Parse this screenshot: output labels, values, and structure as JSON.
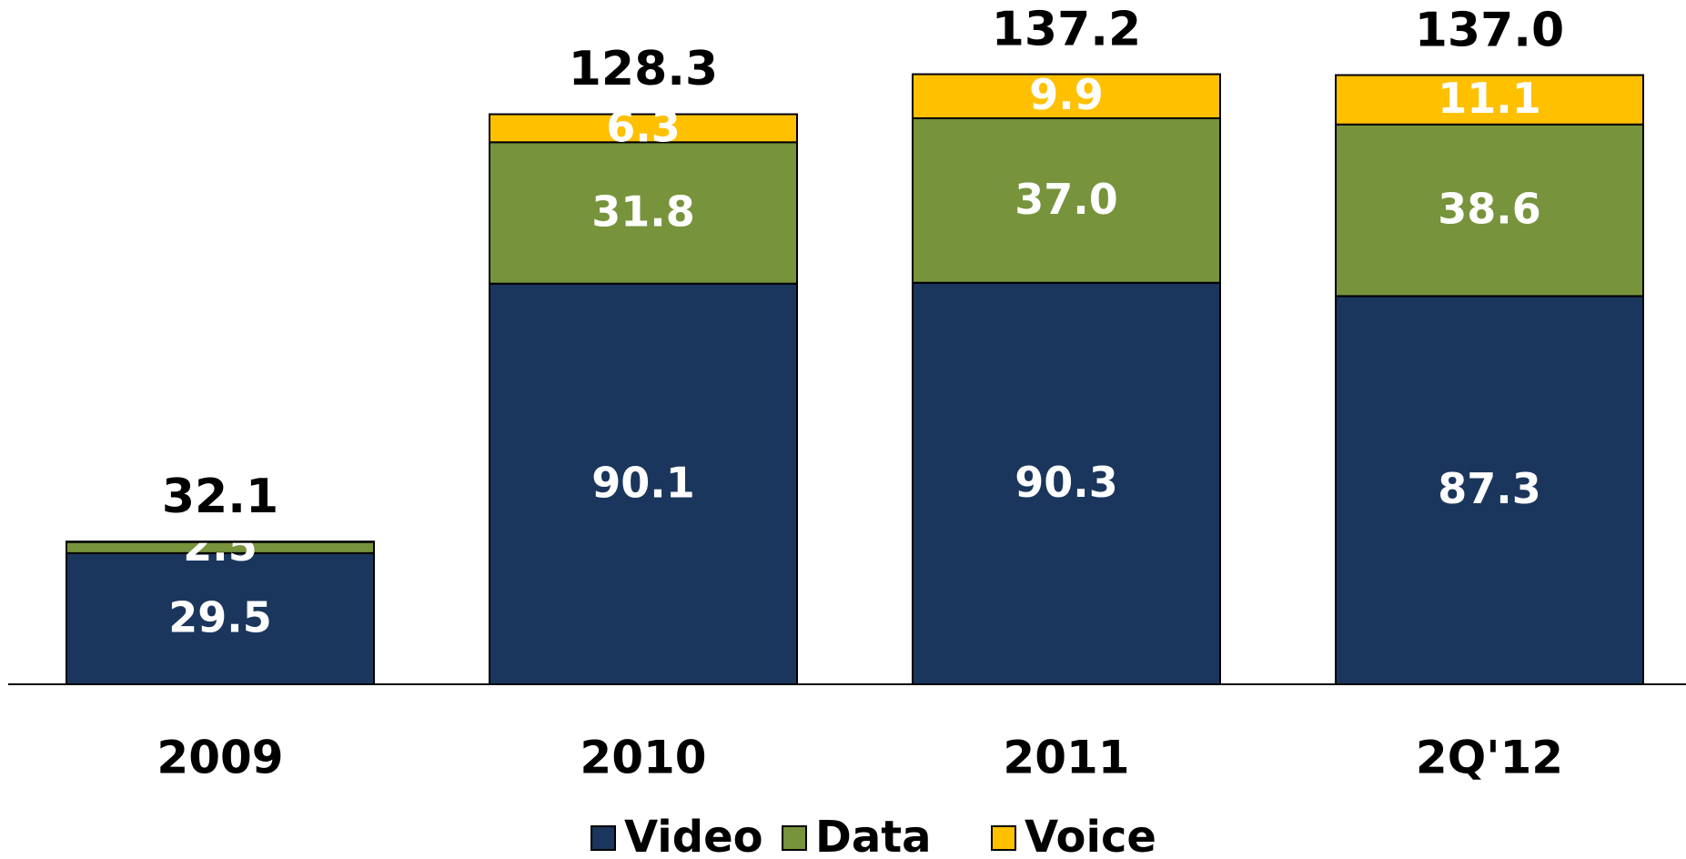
{
  "chart_data": {
    "type": "stacked-bar",
    "categories": [
      "2009",
      "2010",
      "2011",
      "2Q'12"
    ],
    "series": [
      {
        "name": "Video",
        "color": "#1b365d",
        "values": [
          29.5,
          90.1,
          90.3,
          87.3
        ],
        "value_labels": [
          "29.5",
          "90.1",
          "90.3",
          "87.3"
        ]
      },
      {
        "name": "Data",
        "color": "#77933c",
        "values": [
          2.5,
          31.8,
          37.0,
          38.6
        ],
        "value_labels": [
          "2.5",
          "31.8",
          "37.0",
          "38.6"
        ]
      },
      {
        "name": "Voice",
        "color": "#ffc000",
        "values": [
          0.1,
          6.3,
          9.9,
          11.1
        ],
        "value_labels": [
          null,
          "6.3",
          "9.9",
          "11.1"
        ]
      }
    ],
    "totals": {
      "values": [
        32.1,
        128.3,
        137.2,
        137.0
      ],
      "value_labels": [
        "32.1",
        "128.3",
        "137.2",
        "137.0"
      ]
    },
    "ylim": [
      0,
      150
    ],
    "legend": "bottom"
  }
}
